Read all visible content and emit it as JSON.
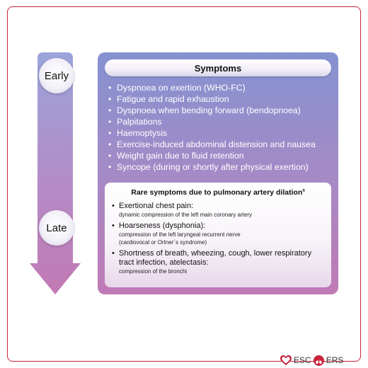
{
  "timeline": {
    "early_label": "Early",
    "late_label": "Late"
  },
  "panel": {
    "title": "Symptoms",
    "symptoms": [
      "Dyspnoea on exertion (WHO-FC)",
      "Fatigue and rapid exhaustion",
      "Dyspnoea when bending forward (bendopnoea)",
      "Palpitations",
      "Haemoptysis",
      "Exercise-induced abdominal distension and nausea",
      "Weight gain due to fluid retention",
      "Syncope (during or shortly after physical exertion)"
    ],
    "rare": {
      "title": "Rare symptoms due to pulmonary artery dilation",
      "title_superscript": "a",
      "items": [
        {
          "main": "Exertional chest pain:",
          "sub": [
            "dynamic compression of the left main coronary artery"
          ]
        },
        {
          "main": "Hoarseness (dysphonia):",
          "sub": [
            "compression of the left laryngeal recurrent nerve",
            "(cardiovocal or Ortner´s syndrome)"
          ]
        },
        {
          "main": "Shortness of breath, wheezing, cough, lower respiratory tract infection, atelectasis:",
          "sub": [
            "compression of the bronchi"
          ]
        }
      ]
    }
  },
  "logo": {
    "esc": "ESC",
    "ers": "ERS"
  },
  "colors": {
    "frame_border": "#c8223a",
    "arrow_top": "#9aa4dc",
    "arrow_bottom": "#c279b4",
    "panel_top": "#8592d1",
    "panel_bottom": "#c07ab5"
  }
}
